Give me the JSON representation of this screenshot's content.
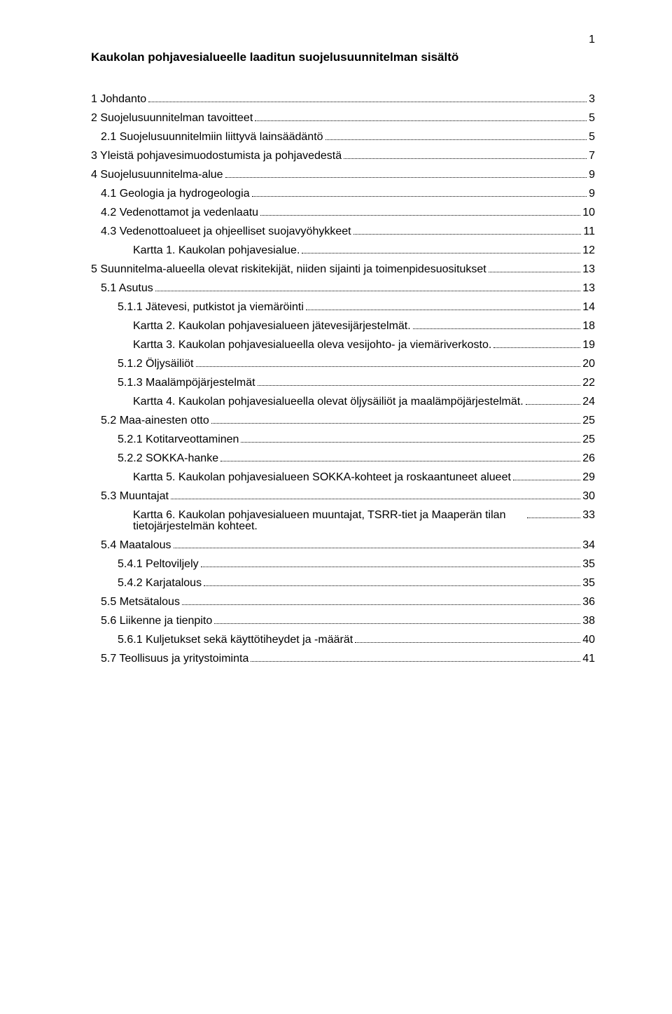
{
  "page_number": "1",
  "title": "Kaukolan pohjavesialueelle laaditun suojelusuunnitelman sisältö",
  "toc": [
    {
      "label": "1 Johdanto",
      "page": "3",
      "indent": 0
    },
    {
      "label": "2 Suojelusuunnitelman tavoitteet",
      "page": "5",
      "indent": 0
    },
    {
      "label": "2.1 Suojelusuunnitelmiin liittyvä lainsäädäntö",
      "page": "5",
      "indent": 1
    },
    {
      "label": "3 Yleistä pohjavesimuodostumista ja pohjavedestä",
      "page": "7",
      "indent": 0
    },
    {
      "label": "4 Suojelusuunnitelma-alue",
      "page": "9",
      "indent": 0
    },
    {
      "label": "4.1 Geologia ja hydrogeologia",
      "page": "9",
      "indent": 1
    },
    {
      "label": "4.2 Vedenottamot ja vedenlaatu",
      "page": "10",
      "indent": 1
    },
    {
      "label": "4.3 Vedenottoalueet ja ohjeelliset suojavyöhykkeet",
      "page": "11",
      "indent": 1
    },
    {
      "label": "Kartta 1. Kaukolan pohjavesialue.",
      "page": "12",
      "indent": 3
    },
    {
      "label": "5 Suunnitelma-alueella olevat riskitekijät, niiden sijainti ja toimenpidesuositukset",
      "page": "13",
      "indent": 0
    },
    {
      "label": "5.1 Asutus",
      "page": "13",
      "indent": 1
    },
    {
      "label": "5.1.1 Jätevesi, putkistot ja viemäröinti",
      "page": "14",
      "indent": 2
    },
    {
      "label": "Kartta 2. Kaukolan pohjavesialueen jätevesijärjestelmät. ",
      "page": "18",
      "indent": 3
    },
    {
      "label": "Kartta 3. Kaukolan pohjavesialueella oleva vesijohto- ja viemäriverkosto. ",
      "page": "19",
      "indent": 3
    },
    {
      "label": "5.1.2 Öljysäiliöt",
      "page": "20",
      "indent": 2
    },
    {
      "label": "5.1.3 Maalämpöjärjestelmät",
      "page": "22",
      "indent": 2
    },
    {
      "label": "Kartta 4. Kaukolan pohjavesialueella olevat öljysäiliöt ja maalämpöjärjestelmät. ",
      "page": "24",
      "indent": 3
    },
    {
      "label": "5.2 Maa-ainesten otto",
      "page": "25",
      "indent": 1
    },
    {
      "label": "5.2.1 Kotitarveottaminen",
      "page": "25",
      "indent": 2
    },
    {
      "label": "5.2.2 SOKKA-hanke",
      "page": "26",
      "indent": 2
    },
    {
      "label": "Kartta 5. Kaukolan pohjavesialueen SOKKA-kohteet ja roskaantuneet alueet",
      "page": "29",
      "indent": 3
    },
    {
      "label": "5.3 Muuntajat",
      "page": "30",
      "indent": 1
    },
    {
      "label": "Kartta 6. Kaukolan pohjavesialueen muuntajat, TSRR-tiet ja Maaperän tilan tietojärjestelmän kohteet. ",
      "page": "33",
      "indent": 3,
      "wrap": true
    },
    {
      "label": "5.4 Maatalous",
      "page": "34",
      "indent": 1
    },
    {
      "label": "5.4.1 Peltoviljely",
      "page": "35",
      "indent": 2
    },
    {
      "label": "5.4.2 Karjatalous",
      "page": "35",
      "indent": 2
    },
    {
      "label": "5.5 Metsätalous",
      "page": "36",
      "indent": 1
    },
    {
      "label": "5.6 Liikenne ja tienpito",
      "page": "38",
      "indent": 1
    },
    {
      "label": "5.6.1 Kuljetukset sekä käyttötiheydet ja -määrät",
      "page": "40",
      "indent": 2
    },
    {
      "label": "5.7 Teollisuus ja yritystoiminta",
      "page": "41",
      "indent": 1
    }
  ]
}
